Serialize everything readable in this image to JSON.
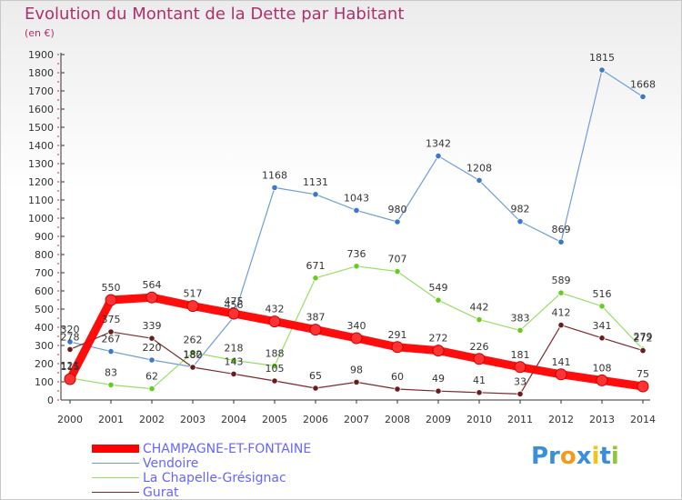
{
  "page": {
    "title": "Evolution du Montant de la Dette par Habitant",
    "subtitle": "(en €)",
    "logo_text": "Proxiti"
  },
  "chart_data": {
    "type": "line",
    "title": "Evolution du Montant de la Dette par Habitant",
    "subtitle": "(en €)",
    "xlabel": "",
    "ylabel": "",
    "ylim": [
      0,
      1900
    ],
    "ytick_step": 100,
    "grid": false,
    "legend_position": "bottom-left",
    "x": [
      "2000",
      "2001",
      "2002",
      "2003",
      "2004",
      "2005",
      "2006",
      "2007",
      "2008",
      "2009",
      "2010",
      "2011",
      "2012",
      "2013",
      "2014"
    ],
    "series": [
      {
        "name": "CHAMPAGNE-ET-FONTAINE",
        "color": "#ff0000",
        "marker_fill": "#ff3333",
        "values": [
          115,
          550,
          564,
          517,
          475,
          432,
          387,
          340,
          291,
          272,
          226,
          181,
          141,
          108,
          75
        ]
      },
      {
        "name": "Vendoire",
        "color": "#6f9ed6",
        "marker_fill": "#3b78c8",
        "values": [
          320,
          267,
          220,
          182,
          456,
          1168,
          1131,
          1043,
          980,
          1342,
          1208,
          982,
          869,
          1815,
          1668
        ]
      },
      {
        "name": "La Chapelle-Grésignac",
        "color": "#99dd66",
        "marker_fill": "#66cc22",
        "values": [
          121,
          83,
          62,
          262,
          218,
          188,
          671,
          736,
          707,
          549,
          442,
          383,
          589,
          516,
          279
        ]
      },
      {
        "name": "Gurat",
        "color": "#7a2a2a",
        "marker_fill": "#6a1b1b",
        "values": [
          278,
          375,
          339,
          180,
          143,
          105,
          65,
          98,
          60,
          49,
          41,
          33,
          412,
          341,
          272
        ]
      }
    ]
  }
}
